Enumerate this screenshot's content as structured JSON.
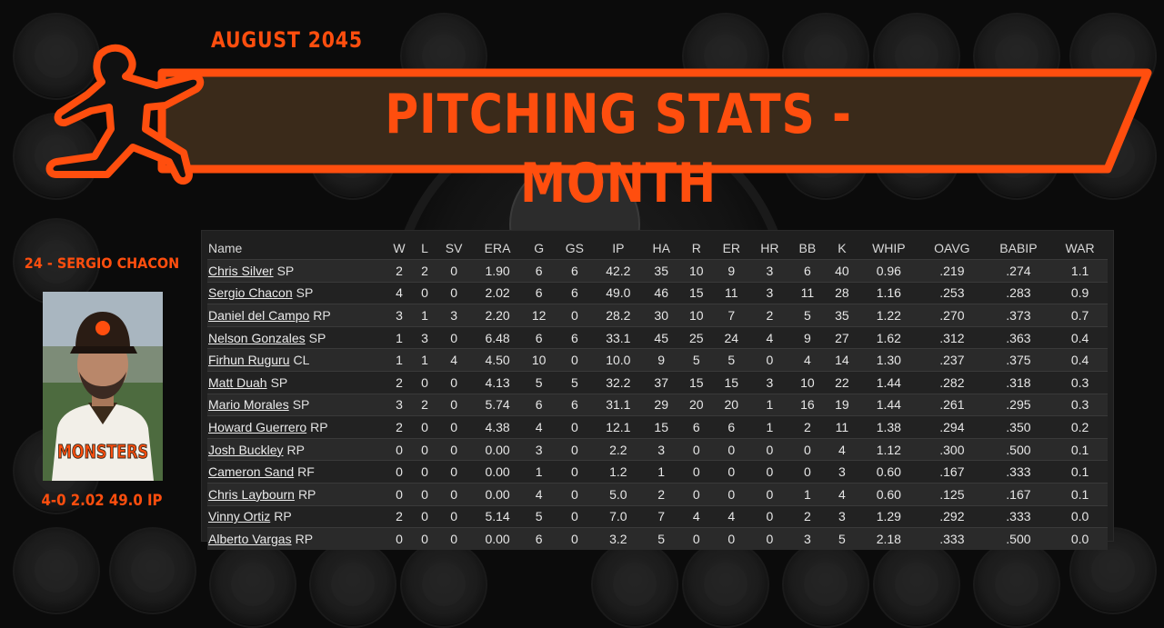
{
  "header": {
    "month": "AUGUST 2045",
    "title": "PITCHING STATS - MONTH"
  },
  "colors": {
    "accent": "#ff4e0e",
    "banner_fill": "#3a2a1a",
    "panel": "#1f1f1f"
  },
  "player": {
    "name": "24 - SERGIO CHACON",
    "statline": "4-0  2.02  49.0 IP",
    "jersey_text": "MONSTERS",
    "photo_icon": "player-portrait"
  },
  "table": {
    "columns": [
      "Name",
      "W",
      "L",
      "SV",
      "ERA",
      "G",
      "GS",
      "IP",
      "HA",
      "R",
      "ER",
      "HR",
      "BB",
      "K",
      "WHIP",
      "OAVG",
      "BABIP",
      "WAR"
    ],
    "rows": [
      {
        "name": "Chris Silver",
        "pos": "SP",
        "w": "2",
        "l": "2",
        "sv": "0",
        "era": "1.90",
        "g": "6",
        "gs": "6",
        "ip": "42.2",
        "ha": "35",
        "r": "10",
        "er": "9",
        "hr": "3",
        "bb": "6",
        "k": "40",
        "whip": "0.96",
        "oavg": ".219",
        "babip": ".274",
        "war": "1.1"
      },
      {
        "name": "Sergio Chacon",
        "pos": "SP",
        "w": "4",
        "l": "0",
        "sv": "0",
        "era": "2.02",
        "g": "6",
        "gs": "6",
        "ip": "49.0",
        "ha": "46",
        "r": "15",
        "er": "11",
        "hr": "3",
        "bb": "11",
        "k": "28",
        "whip": "1.16",
        "oavg": ".253",
        "babip": ".283",
        "war": "0.9"
      },
      {
        "name": "Daniel del Campo",
        "pos": "RP",
        "w": "3",
        "l": "1",
        "sv": "3",
        "era": "2.20",
        "g": "12",
        "gs": "0",
        "ip": "28.2",
        "ha": "30",
        "r": "10",
        "er": "7",
        "hr": "2",
        "bb": "5",
        "k": "35",
        "whip": "1.22",
        "oavg": ".270",
        "babip": ".373",
        "war": "0.7"
      },
      {
        "name": "Nelson Gonzales",
        "pos": "SP",
        "w": "1",
        "l": "3",
        "sv": "0",
        "era": "6.48",
        "g": "6",
        "gs": "6",
        "ip": "33.1",
        "ha": "45",
        "r": "25",
        "er": "24",
        "hr": "4",
        "bb": "9",
        "k": "27",
        "whip": "1.62",
        "oavg": ".312",
        "babip": ".363",
        "war": "0.4"
      },
      {
        "name": "Firhun Ruguru",
        "pos": "CL",
        "w": "1",
        "l": "1",
        "sv": "4",
        "era": "4.50",
        "g": "10",
        "gs": "0",
        "ip": "10.0",
        "ha": "9",
        "r": "5",
        "er": "5",
        "hr": "0",
        "bb": "4",
        "k": "14",
        "whip": "1.30",
        "oavg": ".237",
        "babip": ".375",
        "war": "0.4"
      },
      {
        "name": "Matt Duah",
        "pos": "SP",
        "w": "2",
        "l": "0",
        "sv": "0",
        "era": "4.13",
        "g": "5",
        "gs": "5",
        "ip": "32.2",
        "ha": "37",
        "r": "15",
        "er": "15",
        "hr": "3",
        "bb": "10",
        "k": "22",
        "whip": "1.44",
        "oavg": ".282",
        "babip": ".318",
        "war": "0.3"
      },
      {
        "name": "Mario Morales",
        "pos": "SP",
        "w": "3",
        "l": "2",
        "sv": "0",
        "era": "5.74",
        "g": "6",
        "gs": "6",
        "ip": "31.1",
        "ha": "29",
        "r": "20",
        "er": "20",
        "hr": "1",
        "bb": "16",
        "k": "19",
        "whip": "1.44",
        "oavg": ".261",
        "babip": ".295",
        "war": "0.3"
      },
      {
        "name": "Howard Guerrero",
        "pos": "RP",
        "w": "2",
        "l": "0",
        "sv": "0",
        "era": "4.38",
        "g": "4",
        "gs": "0",
        "ip": "12.1",
        "ha": "15",
        "r": "6",
        "er": "6",
        "hr": "1",
        "bb": "2",
        "k": "11",
        "whip": "1.38",
        "oavg": ".294",
        "babip": ".350",
        "war": "0.2"
      },
      {
        "name": "Josh Buckley",
        "pos": "RP",
        "w": "0",
        "l": "0",
        "sv": "0",
        "era": "0.00",
        "g": "3",
        "gs": "0",
        "ip": "2.2",
        "ha": "3",
        "r": "0",
        "er": "0",
        "hr": "0",
        "bb": "0",
        "k": "4",
        "whip": "1.12",
        "oavg": ".300",
        "babip": ".500",
        "war": "0.1"
      },
      {
        "name": "Cameron Sand",
        "pos": "RF",
        "w": "0",
        "l": "0",
        "sv": "0",
        "era": "0.00",
        "g": "1",
        "gs": "0",
        "ip": "1.2",
        "ha": "1",
        "r": "0",
        "er": "0",
        "hr": "0",
        "bb": "0",
        "k": "3",
        "whip": "0.60",
        "oavg": ".167",
        "babip": ".333",
        "war": "0.1"
      },
      {
        "name": "Chris Laybourn",
        "pos": "RP",
        "w": "0",
        "l": "0",
        "sv": "0",
        "era": "0.00",
        "g": "4",
        "gs": "0",
        "ip": "5.0",
        "ha": "2",
        "r": "0",
        "er": "0",
        "hr": "0",
        "bb": "1",
        "k": "4",
        "whip": "0.60",
        "oavg": ".125",
        "babip": ".167",
        "war": "0.1"
      },
      {
        "name": "Vinny Ortiz",
        "pos": "RP",
        "w": "2",
        "l": "0",
        "sv": "0",
        "era": "5.14",
        "g": "5",
        "gs": "0",
        "ip": "7.0",
        "ha": "7",
        "r": "4",
        "er": "4",
        "hr": "0",
        "bb": "2",
        "k": "3",
        "whip": "1.29",
        "oavg": ".292",
        "babip": ".333",
        "war": "0.0"
      },
      {
        "name": "Alberto Vargas",
        "pos": "RP",
        "w": "0",
        "l": "0",
        "sv": "0",
        "era": "0.00",
        "g": "6",
        "gs": "0",
        "ip": "3.2",
        "ha": "5",
        "r": "0",
        "er": "0",
        "hr": "0",
        "bb": "3",
        "k": "5",
        "whip": "2.18",
        "oavg": ".333",
        "babip": ".500",
        "war": "0.0"
      }
    ]
  }
}
